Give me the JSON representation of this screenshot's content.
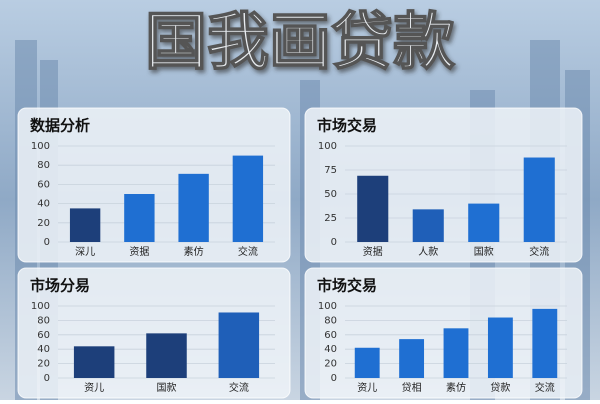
{
  "title": "国我画贷款",
  "chart_data": [
    {
      "type": "bar",
      "title": "数据分析",
      "categories": [
        "深儿",
        "资据",
        "素仿",
        "交流"
      ],
      "values": [
        35,
        50,
        71,
        90
      ],
      "colors": [
        "#1d3f7a",
        "#1f6fd2",
        "#1f6fd2",
        "#1f6fd2"
      ],
      "ylim": [
        0,
        100
      ],
      "yticks": [
        0,
        20,
        40,
        60,
        80,
        100
      ],
      "grid": true
    },
    {
      "type": "bar",
      "title": "市场交易",
      "categories": [
        "资据",
        "人款",
        "国款",
        "交流"
      ],
      "values": [
        69,
        34,
        40,
        88
      ],
      "colors": [
        "#1d3f7a",
        "#1f5fb8",
        "#1f6fd2",
        "#1f6fd2"
      ],
      "ylim": [
        0,
        100
      ],
      "yticks": [
        0,
        25,
        50,
        75,
        100
      ],
      "grid": true
    },
    {
      "type": "bar",
      "title": "市场分易",
      "categories": [
        "资儿",
        "国款",
        "交流"
      ],
      "values": [
        44,
        62,
        91
      ],
      "colors": [
        "#1d3f7a",
        "#1d3f7a",
        "#1f5fb8"
      ],
      "ylim": [
        0,
        100
      ],
      "yticks": [
        0,
        20,
        40,
        60,
        80,
        100
      ],
      "grid": true
    },
    {
      "type": "bar",
      "title": "市场交易",
      "categories": [
        "资儿",
        "贷相",
        "素仿",
        "贷款",
        "交流"
      ],
      "values": [
        42,
        54,
        69,
        84,
        96
      ],
      "colors": [
        "#1f6fd2",
        "#1f6fd2",
        "#1f6fd2",
        "#1f6fd2",
        "#1f6fd2"
      ],
      "ylim": [
        0,
        100
      ],
      "yticks": [
        0,
        20,
        40,
        60,
        80,
        100
      ],
      "grid": true
    }
  ]
}
